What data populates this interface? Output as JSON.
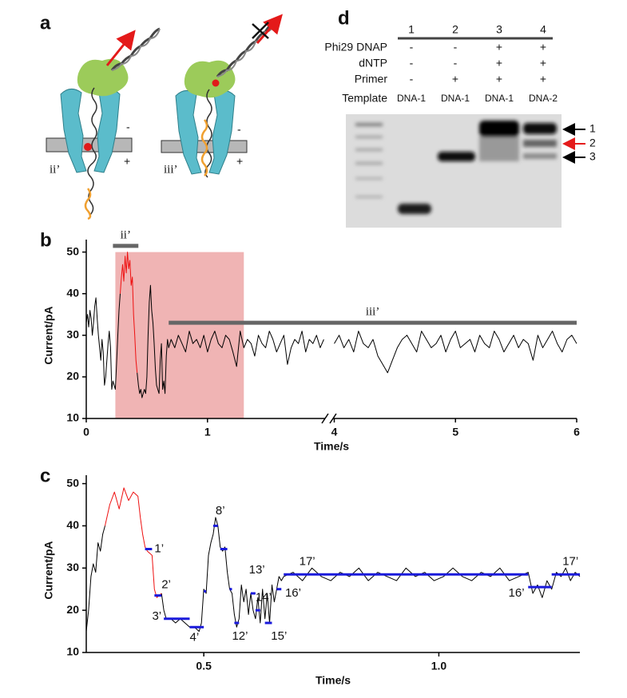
{
  "panel_labels": [
    "a",
    "b",
    "c",
    "d"
  ],
  "panel_a": {
    "labels": [
      "ii’",
      "-",
      "+",
      "iii’",
      "-",
      "+"
    ]
  },
  "chart_data": [
    {
      "type": "line",
      "xlabel": "Time/s",
      "ylabel": "Current/pA",
      "xlim": [
        0,
        6
      ],
      "xbreak": [
        1.97,
        3.99
      ],
      "xticks": [
        0,
        1,
        4,
        5,
        6
      ],
      "ylim": [
        10,
        53
      ],
      "yticks": [
        10,
        20,
        30,
        40,
        50
      ],
      "shade": {
        "x": [
          0.24,
          1.3
        ],
        "y": [
          10,
          50
        ],
        "color": "#f0b4b4"
      },
      "annotations": [
        {
          "label": "ii’",
          "x": [
            0.22,
            0.43
          ],
          "y": 51.5
        },
        {
          "label": "iii’",
          "x": [
            0.68,
            6
          ],
          "y": 33
        }
      ],
      "series": [
        {
          "color": "#000000",
          "x": [
            0,
            0.01,
            0.02,
            0.03,
            0.04,
            0.05,
            0.06,
            0.07,
            0.08,
            0.09,
            0.1,
            0.11,
            0.12,
            0.13,
            0.14,
            0.15,
            0.16,
            0.17,
            0.18,
            0.19,
            0.2,
            0.21,
            0.22,
            0.23,
            0.24,
            0.25,
            0.26,
            0.27,
            0.28,
            0.35,
            0.42,
            0.43,
            0.44,
            0.45,
            0.46,
            0.47,
            0.48,
            0.49,
            0.5,
            0.51,
            0.52,
            0.53,
            0.54,
            0.55,
            0.56,
            0.57,
            0.58,
            0.59,
            0.6,
            0.61,
            0.62,
            0.63,
            0.64,
            0.65,
            0.66,
            0.67,
            0.68,
            0.7,
            0.73,
            0.76,
            0.79,
            0.82,
            0.85,
            0.88,
            0.91,
            0.94,
            0.97,
            1.0,
            1.03,
            1.06,
            1.09,
            1.12,
            1.15,
            1.18,
            1.21,
            1.24,
            1.27,
            1.3,
            1.33,
            1.36,
            1.39,
            1.42,
            1.45,
            1.48,
            1.51,
            1.54,
            1.57,
            1.6,
            1.63,
            1.66,
            1.69,
            1.72,
            1.75,
            1.78,
            1.81,
            1.84,
            1.87,
            1.9,
            1.93,
            1.96,
            3,
            4.0,
            4.04,
            4.08,
            4.12,
            4.16,
            4.2,
            4.24,
            4.28,
            4.32,
            4.36,
            4.4,
            4.44,
            4.48,
            4.52,
            4.56,
            4.6,
            4.64,
            4.68,
            4.72,
            4.76,
            4.8,
            4.84,
            4.88,
            4.92,
            4.96,
            5.0,
            5.04,
            5.08,
            5.12,
            5.16,
            5.2,
            5.24,
            5.28,
            5.32,
            5.36,
            5.4,
            5.44,
            5.48,
            5.52,
            5.56,
            5.6,
            5.64,
            5.68,
            5.72,
            5.76,
            5.8,
            5.84,
            5.88,
            5.92,
            5.96,
            6.0
          ],
          "values": [
            33,
            35,
            32,
            36,
            34,
            30,
            33,
            37,
            39,
            34,
            30,
            27,
            24,
            29,
            26,
            18,
            20,
            24,
            28,
            31,
            27,
            17,
            19,
            18,
            17,
            23,
            30,
            36,
            40,
            null,
            21,
            18,
            16,
            17,
            15,
            16,
            17,
            16,
            20,
            30,
            38,
            42,
            36,
            33,
            28,
            22,
            18,
            17,
            16,
            24,
            28,
            17,
            19,
            16,
            25,
            29,
            27,
            29,
            27,
            30,
            28,
            26,
            31,
            28,
            29,
            27,
            30,
            26,
            29,
            31,
            28,
            27,
            30,
            29,
            26,
            22.5,
            31,
            27,
            29,
            28,
            25,
            30,
            28,
            27,
            31,
            29,
            26,
            28,
            30,
            23,
            27,
            29,
            28,
            31,
            26,
            29,
            28,
            30,
            27,
            29,
            null,
            28,
            30,
            27,
            29,
            26,
            31,
            28,
            27,
            29,
            25,
            23,
            21,
            24,
            27,
            29,
            30,
            28,
            26,
            31,
            29,
            27,
            28,
            30,
            26,
            29,
            31,
            27,
            28,
            29,
            26,
            30,
            28,
            27,
            31,
            29,
            26,
            28,
            30,
            27,
            29,
            28,
            24,
            30,
            27,
            29,
            31,
            28,
            26,
            29,
            30,
            28
          ]
        },
        {
          "color": "#ee1111",
          "x": [
            0.28,
            0.29,
            0.3,
            0.31,
            0.32,
            0.33,
            0.34,
            0.35,
            0.36,
            0.37,
            0.38,
            0.39,
            0.4,
            0.41,
            0.42
          ],
          "values": [
            40,
            44,
            47,
            43,
            49,
            45,
            50,
            46,
            48,
            42,
            44,
            35,
            30,
            24,
            21
          ]
        }
      ]
    },
    {
      "type": "line",
      "xlabel": "Time/s",
      "ylabel": "Current/pA",
      "xlim": [
        0.25,
        1.3
      ],
      "xticks": [
        0.5,
        {
          "value": 1,
          "label": "1.0"
        }
      ],
      "ylim": [
        10,
        52
      ],
      "yticks": [
        10,
        20,
        30,
        40,
        50
      ],
      "series": [
        {
          "color": "#000000",
          "x": [
            0.25,
            0.255,
            0.26,
            0.265,
            0.27,
            0.275,
            0.28,
            0.285,
            0.29,
            0.35,
            0.41,
            0.415,
            0.42,
            0.43,
            0.44,
            0.45,
            0.46,
            0.47,
            0.48,
            0.49,
            0.495,
            0.5,
            0.505,
            0.51,
            0.515,
            0.52,
            0.525,
            0.53,
            0.535,
            0.54,
            0.545,
            0.55,
            0.555,
            0.56,
            0.565,
            0.57,
            0.575,
            0.58,
            0.585,
            0.59,
            0.595,
            0.6,
            0.605,
            0.61,
            0.615,
            0.62,
            0.625,
            0.63,
            0.635,
            0.64,
            0.645,
            0.65,
            0.655,
            0.66,
            0.665,
            0.67,
            0.69,
            0.71,
            0.73,
            0.75,
            0.77,
            0.79,
            0.81,
            0.83,
            0.85,
            0.87,
            0.89,
            0.91,
            0.93,
            0.95,
            0.97,
            0.99,
            1.01,
            1.03,
            1.05,
            1.07,
            1.09,
            1.11,
            1.13,
            1.15,
            1.17,
            1.19,
            1.2,
            1.21,
            1.22,
            1.23,
            1.24,
            1.25,
            1.26,
            1.27,
            1.28,
            1.29,
            1.3
          ],
          "values": [
            15,
            20,
            28,
            31,
            29,
            36,
            34,
            38,
            40,
            null,
            24,
            20,
            18,
            18,
            17,
            18,
            17,
            16,
            16,
            15,
            17,
            25,
            24,
            33,
            36,
            38,
            42,
            40,
            35,
            34,
            35,
            29,
            25,
            24,
            19,
            16,
            18,
            26,
            22,
            25,
            19,
            24,
            20,
            18,
            23,
            17,
            25,
            18,
            24,
            17,
            26,
            22,
            25,
            28,
            27,
            28,
            29,
            27,
            30,
            28,
            27,
            29,
            28,
            30,
            27,
            29,
            28,
            27,
            30,
            28,
            29,
            27,
            28,
            30,
            28,
            27,
            29,
            28,
            30,
            27,
            28,
            29,
            24,
            26,
            23,
            27,
            25,
            29,
            28,
            30,
            27,
            29,
            28
          ]
        },
        {
          "color": "#ee1111",
          "x": [
            0.29,
            0.3,
            0.31,
            0.32,
            0.33,
            0.34,
            0.35,
            0.36,
            0.365,
            0.37,
            0.375,
            0.38,
            0.39,
            0.395,
            0.4,
            0.41
          ],
          "values": [
            40,
            45,
            48,
            44,
            49,
            46,
            48,
            47,
            42,
            38,
            35,
            34,
            33,
            25,
            23,
            24
          ]
        }
      ],
      "steps": {
        "color": "#1a1adb",
        "items": [
          {
            "x": [
              0.375,
              0.39
            ],
            "y": 34.5,
            "label": "1’",
            "label_x": 0.405,
            "label_y": 34.5
          },
          {
            "x": [
              0.395,
              0.41
            ],
            "y": 23.5,
            "label": "2’",
            "label_x": 0.42,
            "label_y": 26
          },
          {
            "x": [
              0.415,
              0.47
            ],
            "y": 18,
            "label": "3’",
            "label_x": 0.4,
            "label_y": 18.5
          },
          {
            "x": [
              0.47,
              0.5
            ],
            "y": 16,
            "label": "4’",
            "label_x": 0.48,
            "label_y": 13.5
          },
          {
            "x": [
              0.5,
              0.505
            ],
            "y": 24.5
          },
          {
            "x": [
              0.52,
              0.53
            ],
            "y": 40,
            "label": "8’",
            "label_x": 0.535,
            "label_y": 43.5
          },
          {
            "x": [
              0.535,
              0.55
            ],
            "y": 34.5
          },
          {
            "x": [
              0.555,
              0.56
            ],
            "y": 25
          },
          {
            "x": [
              0.565,
              0.575
            ],
            "y": 17,
            "label": "12’",
            "label_x": 0.577,
            "label_y": 13.8
          },
          {
            "x": [
              0.6,
              0.61
            ],
            "y": 24,
            "label": "13’",
            "label_x": 0.613,
            "label_y": 29.5
          },
          {
            "x": [
              0.61,
              0.62
            ],
            "y": 20,
            "label": "14’",
            "label_x": 0.627,
            "label_y": 23
          },
          {
            "x": [
              0.63,
              0.645
            ],
            "y": 17,
            "label": "15’",
            "label_x": 0.66,
            "label_y": 13.8
          },
          {
            "x": [
              0.655,
              0.665
            ],
            "y": 25,
            "label": "16’",
            "label_x": 0.69,
            "label_y": 24
          },
          {
            "x": [
              0.67,
              1.19
            ],
            "y": 28.5,
            "label": "17’",
            "label_x": 0.72,
            "label_y": 31.5
          },
          {
            "x": [
              1.19,
              1.24
            ],
            "y": 25.5,
            "label": "16’",
            "label_x": 1.165,
            "label_y": 24
          },
          {
            "x": [
              1.24,
              1.3
            ],
            "y": 28.5,
            "label": "17’",
            "label_x": 1.28,
            "label_y": 31.5
          }
        ]
      }
    }
  ],
  "panel_d": {
    "lanes": [
      "1",
      "2",
      "3",
      "4"
    ],
    "rows": [
      {
        "label": "Phi29 DNAP",
        "cells": [
          "-",
          "-",
          "+",
          "+"
        ]
      },
      {
        "label": "dNTP",
        "cells": [
          "-",
          "-",
          "+",
          "+"
        ]
      },
      {
        "label": "Primer",
        "cells": [
          "-",
          "+",
          "+",
          "+"
        ]
      },
      {
        "label": "Template",
        "cells": [
          "DNA-1",
          "DNA-1",
          "DNA-1",
          "DNA-2"
        ]
      }
    ],
    "band_markers": [
      "1",
      "2",
      "3"
    ]
  }
}
